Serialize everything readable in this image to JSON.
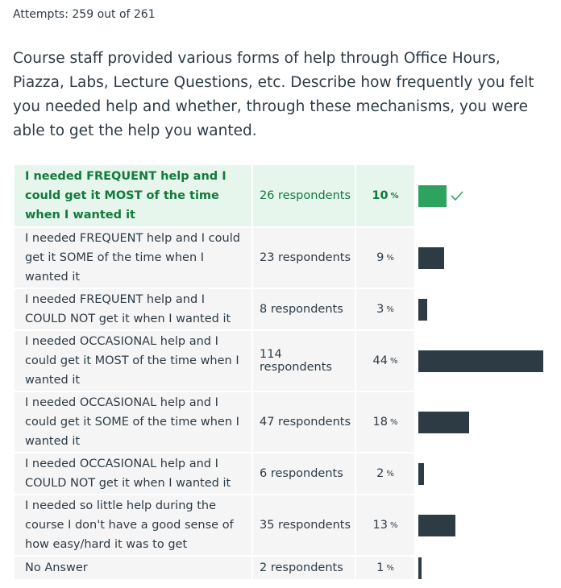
{
  "attempts": "Attempts: 259 out of 261",
  "question": "Course staff provided various forms of help through Office Hours, Piazza, Labs, Lecture Questions, etc. Describe how frequently you felt you needed help and whether, through these mechanisms, you were able to get the help you wanted.",
  "percent_sign": "%",
  "colors": {
    "correct_bar": "#2ea35e",
    "bar": "#2d3b45",
    "correct_bg": "#e6f6ed",
    "row_bg": "#f5f5f5",
    "correct_text": "#127a3b"
  },
  "answers": [
    {
      "label": "I needed FREQUENT help and I could get it MOST of the time when I wanted it",
      "respondents": "26 respondents",
      "percent": "10",
      "fraction": 0.1,
      "correct": true
    },
    {
      "label": "I needed FREQUENT help and I could get it SOME of the time when I wanted it",
      "respondents": "23 respondents",
      "percent": "9",
      "fraction": 0.09,
      "correct": false
    },
    {
      "label": "I needed FREQUENT help and I COULD NOT get it when I wanted it",
      "respondents": "8 respondents",
      "percent": "3",
      "fraction": 0.03,
      "correct": false
    },
    {
      "label": "I needed OCCASIONAL help and I could get it MOST of the time when I wanted it",
      "respondents": "114 respondents",
      "percent": "44",
      "fraction": 0.44,
      "correct": false
    },
    {
      "label": "I needed OCCASIONAL help and I could get it SOME of the time when I wanted it",
      "respondents": "47 respondents",
      "percent": "18",
      "fraction": 0.18,
      "correct": false
    },
    {
      "label": "I needed OCCASIONAL help and I COULD NOT get it when I wanted it",
      "respondents": "6 respondents",
      "percent": "2",
      "fraction": 0.02,
      "correct": false
    },
    {
      "label": "I needed so little help during the course I don't have a good sense of how easy/hard it was to get",
      "respondents": "35 respondents",
      "percent": "13",
      "fraction": 0.13,
      "correct": false
    },
    {
      "label": "No Answer",
      "respondents": "2 respondents",
      "percent": "1",
      "fraction": 0.01,
      "correct": false
    }
  ]
}
